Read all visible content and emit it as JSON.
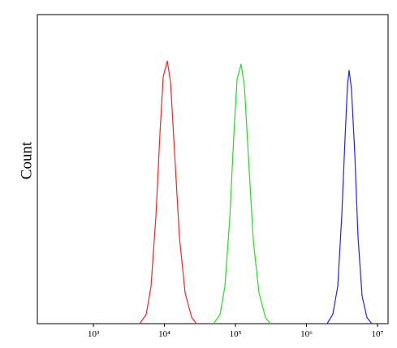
{
  "chart_data": {
    "type": "line",
    "ylabel": "Count",
    "xscale": "log",
    "xlim": [
      162,
      14100000
    ],
    "ylim": [
      0,
      100
    ],
    "xticks": [
      {
        "value": 1000,
        "label": "10³"
      },
      {
        "value": 10000,
        "label": "10⁴"
      },
      {
        "value": 100000,
        "label": "10⁵"
      },
      {
        "value": 1000000,
        "label": "10⁶"
      },
      {
        "value": 10000000,
        "label": "10⁷"
      }
    ],
    "series": [
      {
        "color": "#ff2020",
        "x": [
          4480,
          5530,
          6470,
          7590,
          8650,
          9610,
          10960,
          12190,
          13890,
          16260,
          19550,
          24140,
          28250
        ],
        "values": [
          0,
          3,
          12,
          35,
          62,
          80,
          85,
          78,
          55,
          28,
          10,
          2,
          0
        ]
      },
      {
        "color": "#20e020",
        "x": [
          49100,
          60670,
          70970,
          83180,
          94840,
          105400,
          120200,
          133600,
          152400,
          178300,
          214300,
          264900,
          309700
        ],
        "values": [
          0,
          3,
          12,
          34,
          61,
          79,
          84,
          77,
          54,
          27,
          10,
          2,
          0
        ]
      },
      {
        "color": "#2020ff",
        "x": [
          1954000,
          2350000,
          2754000,
          3141000,
          3491000,
          3776000,
          3981000,
          4306000,
          4786000,
          5321000,
          6070000,
          7101000,
          8318000
        ],
        "values": [
          0,
          3,
          12,
          35,
          60,
          77,
          82,
          76,
          55,
          28,
          9,
          2,
          0
        ]
      }
    ]
  }
}
